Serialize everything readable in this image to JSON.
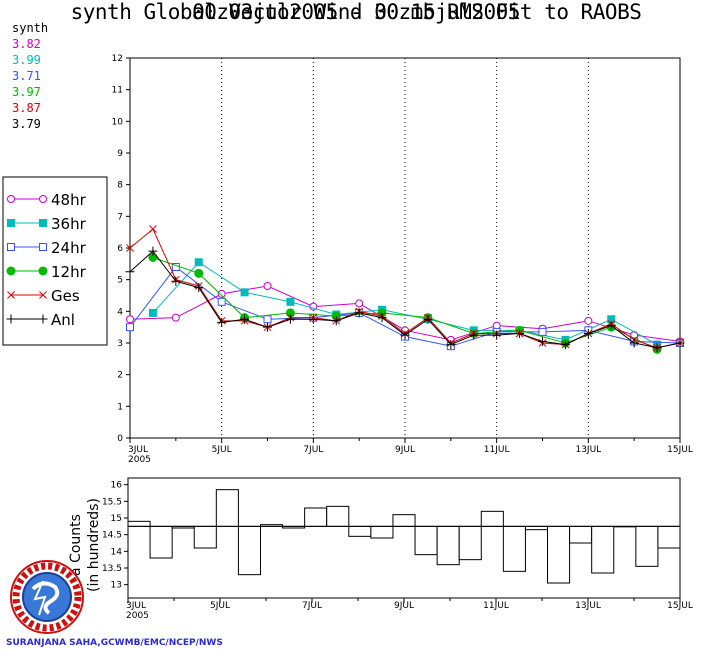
{
  "title_line1": "synth Global Vector Wind 30 mb RMS Fit to RAOBS",
  "title_line2": "00z03jul2005 - 00z15jul2005",
  "stats_header": "synth",
  "stats": [
    {
      "value": "3.82",
      "color": "#cc00cc"
    },
    {
      "value": "3.99",
      "color": "#00bbbb"
    },
    {
      "value": "3.71",
      "color": "#3355ff"
    },
    {
      "value": "3.97",
      "color": "#00bb00"
    },
    {
      "value": "3.87",
      "color": "#dd0000"
    },
    {
      "value": "3.79",
      "color": "#000000"
    }
  ],
  "credit": "SURANJANA SAHA,GCWMB/EMC/NCEP/NWS",
  "chart_data": [
    {
      "type": "line",
      "title": "synth Global Vector Wind 30 mb RMS Fit to RAOBS",
      "subtitle": "00z03jul2005 - 00z15jul2005",
      "x_ticks": [
        "3JUL\n2005",
        "5JUL",
        "7JUL",
        "9JUL",
        "11JUL",
        "13JUL",
        "15JUL"
      ],
      "ylim": [
        0,
        12
      ],
      "y_ticks": [
        0,
        1,
        2,
        3,
        4,
        5,
        6,
        7,
        8,
        9,
        10,
        11,
        12
      ],
      "legend_placement": "left",
      "series": [
        {
          "name": "48hr",
          "color": "#cc00cc",
          "marker": "open-circle",
          "x": [
            0,
            1,
            2,
            3,
            4,
            5,
            6,
            7,
            8,
            9,
            10,
            11,
            12
          ],
          "y": [
            3.75,
            3.8,
            4.55,
            4.8,
            4.15,
            4.25,
            3.4,
            3.1,
            3.55,
            3.45,
            3.7,
            3.25,
            3.05
          ]
        },
        {
          "name": "36hr",
          "color": "#00bbbb",
          "marker": "filled-square",
          "x": [
            0.5,
            1.5,
            2.5,
            3.5,
            4.5,
            5.5,
            6.5,
            7.5,
            8.5,
            9.5,
            10.5,
            11.5
          ],
          "y": [
            3.95,
            5.55,
            4.6,
            4.3,
            3.9,
            4.05,
            3.75,
            3.4,
            3.4,
            3.1,
            3.75,
            2.95
          ]
        },
        {
          "name": "24hr",
          "color": "#3355ff",
          "marker": "open-square",
          "x": [
            0,
            1,
            2,
            3,
            4,
            5,
            6,
            7,
            8,
            9,
            10,
            11,
            12
          ],
          "y": [
            3.5,
            5.4,
            4.3,
            3.75,
            3.8,
            3.95,
            3.2,
            2.9,
            3.35,
            3.35,
            3.4,
            3.05,
            3.0
          ]
        },
        {
          "name": "12hr",
          "color": "#00bb00",
          "marker": "filled-circle",
          "x": [
            0.5,
            1.5,
            2.5,
            3.5,
            4.5,
            5.5,
            6.5,
            7.5,
            8.5,
            9.5,
            10.5,
            11.5
          ],
          "y": [
            5.7,
            5.2,
            3.8,
            3.95,
            3.85,
            3.95,
            3.8,
            3.3,
            3.4,
            3.0,
            3.5,
            2.8
          ]
        },
        {
          "name": "Ges",
          "color": "#dd0000",
          "marker": "x",
          "x": [
            0,
            0.5,
            1,
            1.5,
            2,
            2.5,
            3,
            3.5,
            4,
            4.5,
            5,
            5.5,
            6,
            6.5,
            7,
            7.5,
            8,
            8.5,
            9,
            9.5,
            10,
            10.5,
            11,
            11.5,
            12
          ],
          "y": [
            6.0,
            6.6,
            5.0,
            4.8,
            3.7,
            3.7,
            3.5,
            3.8,
            3.8,
            3.7,
            4.0,
            3.85,
            3.3,
            3.8,
            3.0,
            3.3,
            3.3,
            3.3,
            3.0,
            2.95,
            3.3,
            3.6,
            3.1,
            2.85,
            3.0
          ]
        },
        {
          "name": "Anl",
          "color": "#000000",
          "marker": "plus",
          "x": [
            0,
            0.5,
            1,
            1.5,
            2,
            2.5,
            3,
            3.5,
            4,
            4.5,
            5,
            5.5,
            6,
            6.5,
            7,
            7.5,
            8,
            8.5,
            9,
            9.5,
            10,
            10.5,
            11,
            11.5,
            12
          ],
          "y": [
            5.25,
            5.9,
            4.95,
            4.75,
            3.65,
            3.75,
            3.5,
            3.75,
            3.75,
            3.7,
            3.95,
            3.8,
            3.25,
            3.75,
            2.95,
            3.25,
            3.25,
            3.3,
            3.05,
            2.95,
            3.3,
            3.55,
            3.0,
            2.85,
            3.0
          ]
        }
      ]
    },
    {
      "type": "bar",
      "title": "",
      "ylabel_prefix": "a Counts",
      "ylabel_suffix": "(in hundreds)",
      "x_ticks": [
        "3JUL\n2005",
        "5JUL",
        "7JUL",
        "9JUL",
        "11JUL",
        "13JUL",
        "15JUL"
      ],
      "ylim": [
        12.6,
        16.2
      ],
      "y_ticks": [
        "13",
        "13.5",
        "14",
        "14.5",
        "15",
        "15.5",
        "16"
      ],
      "reference_line": 14.75,
      "values": [
        14.9,
        13.8,
        14.7,
        14.1,
        15.85,
        13.3,
        14.8,
        14.7,
        15.3,
        15.35,
        14.45,
        14.4,
        15.1,
        13.9,
        13.6,
        13.75,
        15.2,
        13.4,
        14.65,
        13.05,
        14.25,
        13.35,
        14.75,
        13.55,
        14.1
      ]
    }
  ]
}
